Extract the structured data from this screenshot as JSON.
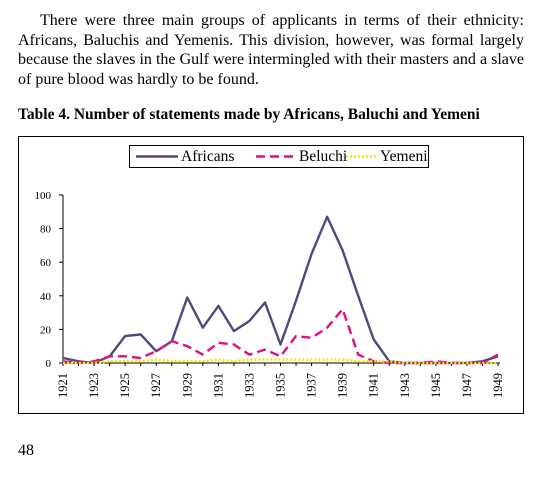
{
  "paragraph": "There were three main groups of applicants in terms of their ethnicity: Africans, Baluchis and Yemenis. This division, however, was formal largely because the slaves in the Gulf were intermingled with their masters and a slave of pure blood was hardly to be found.",
  "caption": "Table 4. Number of statements made by Africans, Baluchi and Yemeni",
  "page_number": "48",
  "chart_data": {
    "type": "line",
    "title": "",
    "xlabel": "",
    "ylabel": "",
    "ylim": [
      0,
      100
    ],
    "yticks": [
      0,
      20,
      40,
      60,
      80,
      100
    ],
    "xticks": [
      "1921",
      "1923",
      "1925",
      "1927",
      "1929",
      "1931",
      "1933",
      "1935",
      "1937",
      "1939",
      "1941",
      "1943",
      "1945",
      "1947",
      "1949"
    ],
    "x": [
      1921,
      1922,
      1923,
      1924,
      1925,
      1926,
      1927,
      1928,
      1929,
      1930,
      1931,
      1932,
      1933,
      1934,
      1935,
      1936,
      1937,
      1938,
      1939,
      1940,
      1941,
      1942,
      1943,
      1944,
      1945,
      1946,
      1947,
      1948,
      1949
    ],
    "legend_position": "top",
    "grid": false,
    "series": [
      {
        "name": "Africans",
        "color": "#4d4a7c",
        "style": "solid",
        "values": [
          3,
          1,
          0,
          4,
          16,
          17,
          7,
          13,
          39,
          21,
          34,
          19,
          25,
          36,
          11,
          37,
          65,
          87,
          67,
          40,
          14,
          1,
          0,
          0,
          0,
          0,
          0,
          1,
          4
        ]
      },
      {
        "name": "Beluchi",
        "color": "#e0107c",
        "style": "dashed",
        "values": [
          1,
          0,
          1,
          4,
          4,
          3,
          7,
          13,
          10,
          5,
          12,
          11,
          5,
          8,
          4,
          16,
          15,
          21,
          32,
          5,
          1,
          0,
          0,
          0,
          1,
          0,
          0,
          0,
          5
        ]
      },
      {
        "name": "Yemeni",
        "color": "#f2e600",
        "style": "dotted",
        "values": [
          0,
          0,
          0,
          1,
          1,
          1,
          2,
          1,
          1,
          1,
          2,
          1,
          2,
          2,
          2,
          2,
          2,
          2,
          2,
          1,
          1,
          1,
          0,
          0,
          0,
          0,
          0,
          0,
          0
        ]
      }
    ]
  }
}
